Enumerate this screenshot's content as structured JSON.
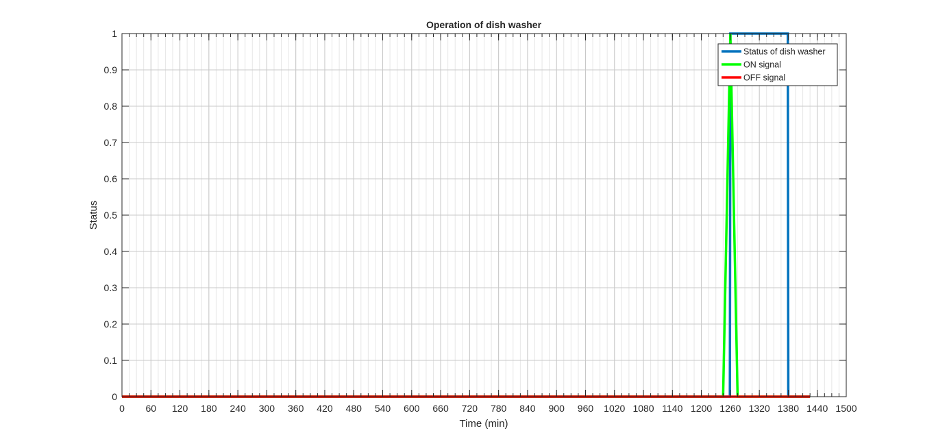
{
  "chart_data": {
    "type": "line",
    "title": "Operation of dish washer",
    "xlabel": "Time (min)",
    "ylabel": "Status",
    "xlim": [
      0,
      1500
    ],
    "ylim": [
      0,
      1
    ],
    "x_major_ticks": [
      0,
      60,
      120,
      180,
      240,
      300,
      360,
      420,
      480,
      540,
      600,
      660,
      720,
      780,
      840,
      900,
      960,
      1020,
      1080,
      1140,
      1200,
      1260,
      1320,
      1380,
      1440,
      1500
    ],
    "y_ticks": [
      0,
      0.1,
      0.2,
      0.3,
      0.4,
      0.5,
      0.6,
      0.7,
      0.8,
      0.9,
      1
    ],
    "x_minor_step": 15,
    "grid": true,
    "legend_position": "top-right",
    "series": [
      {
        "name": "Status of dish washer",
        "color": "#0072bd",
        "points": [
          [
            0,
            0
          ],
          [
            1259,
            0
          ],
          [
            1260,
            1
          ],
          [
            1379,
            1
          ],
          [
            1380,
            0
          ],
          [
            1425,
            0
          ]
        ]
      },
      {
        "name": "ON signal",
        "color": "#00ff00",
        "points": [
          [
            0,
            0
          ],
          [
            1245,
            0
          ],
          [
            1260,
            1
          ],
          [
            1275,
            0
          ],
          [
            1425,
            0
          ]
        ]
      },
      {
        "name": "OFF signal",
        "color": "#ff0000",
        "points": [
          [
            0,
            0
          ],
          [
            1425,
            0
          ]
        ]
      }
    ]
  }
}
